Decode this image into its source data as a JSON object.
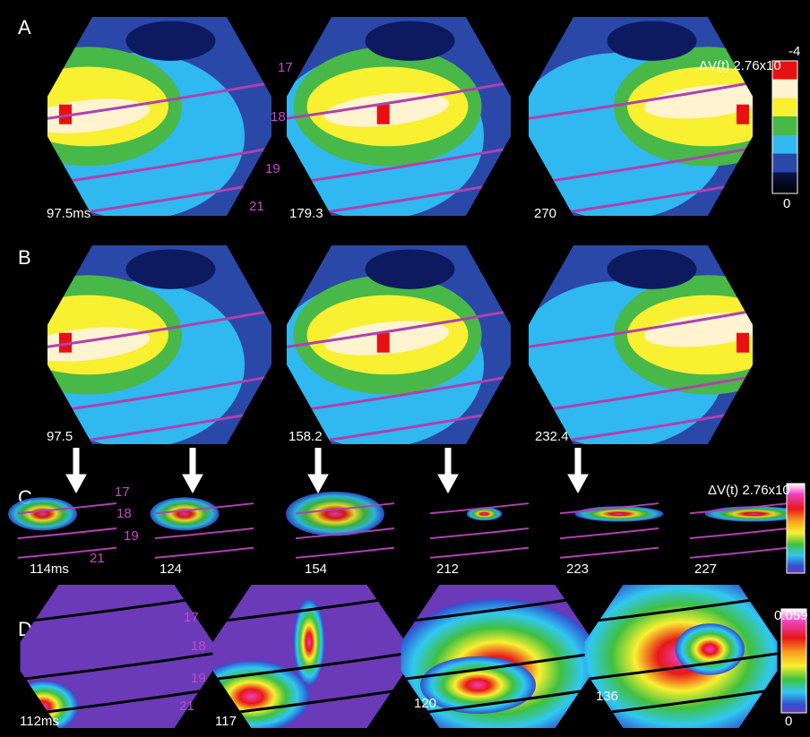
{
  "panels": [
    {
      "label": "A",
      "times": [
        "97.5ms",
        "179.3",
        "270"
      ],
      "areas": [
        "17",
        "18",
        "19",
        "21"
      ],
      "colorbar": {
        "title": "ΔV(t) 2.76x10",
        "exponent": "-4",
        "min": "0"
      }
    },
    {
      "label": "B",
      "times": [
        "97.5",
        "158.2",
        "232.4"
      ]
    },
    {
      "label": "C",
      "times": [
        "114ms",
        "124",
        "154",
        "212",
        "223",
        "227"
      ],
      "areas": [
        "17",
        "18",
        "19",
        "21"
      ],
      "colorbar": {
        "title": "ΔV(t) 2.76x10"
      }
    },
    {
      "label": "D",
      "times": [
        "112ms",
        "117",
        "120",
        "136"
      ],
      "areas": [
        "17",
        "18",
        "19",
        "21"
      ],
      "colorbar": {
        "max": "0.059",
        "min": "0"
      }
    }
  ]
}
